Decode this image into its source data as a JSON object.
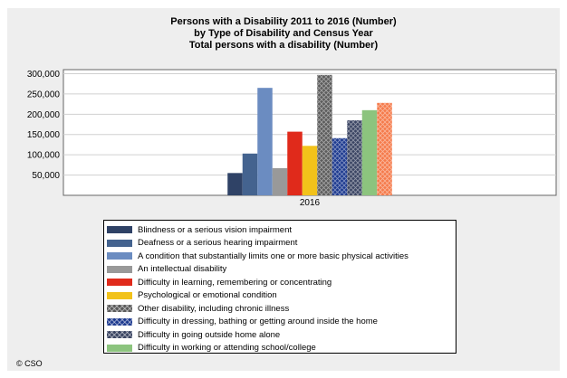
{
  "chart_data": {
    "type": "bar",
    "title": [
      "Persons with a Disability 2011 to 2016 (Number)",
      "by Type of Disability and Census Year",
      "Total persons with a disability (Number)"
    ],
    "categories": [
      "2016"
    ],
    "ylim": [
      0,
      310000
    ],
    "yticks": [
      "50,000",
      "100,000",
      "150,000",
      "200,000",
      "250,000",
      "300,000"
    ],
    "ytick_values": [
      50000,
      100000,
      150000,
      200000,
      250000,
      300000
    ],
    "grid": true,
    "legend_position": "bottom",
    "series": [
      {
        "name": "Blindness or a serious vision impairment",
        "values": [
          55000
        ],
        "color": "#2f4266",
        "pattern": "solid"
      },
      {
        "name": "Deafness or a serious hearing impairment",
        "values": [
          103000
        ],
        "color": "#44638f",
        "pattern": "solid"
      },
      {
        "name": "A condition that substantially limits one or more basic physical activities",
        "values": [
          265000
        ],
        "color": "#6b8cc1",
        "pattern": "solid"
      },
      {
        "name": "An intellectual disability",
        "values": [
          67000
        ],
        "color": "#999999",
        "pattern": "solid"
      },
      {
        "name": "Difficulty in learning, remembering or concentrating",
        "values": [
          157000
        ],
        "color": "#e02a1b",
        "pattern": "solid"
      },
      {
        "name": "Psychological or emotional condition",
        "values": [
          122000
        ],
        "color": "#f2c21a",
        "pattern": "solid"
      },
      {
        "name": "Other disability, including chronic illness",
        "values": [
          297000
        ],
        "color": "#5b5b5b",
        "pattern": "crosshatch"
      },
      {
        "name": "Difficulty in dressing, bathing or getting around inside the home",
        "values": [
          141000
        ],
        "color": "#1d3a8f",
        "pattern": "crosshatch"
      },
      {
        "name": "Difficulty in going outside home alone",
        "values": [
          185000
        ],
        "color": "#3b4563",
        "pattern": "crosshatch"
      },
      {
        "name": "Difficulty in working or attending school/college",
        "values": [
          210000
        ],
        "color": "#8cc47e",
        "pattern": "solid"
      },
      {
        "name": "",
        "values": [
          228000
        ],
        "color": "#f57a4a",
        "pattern": "crosshatch"
      }
    ]
  },
  "footer": {
    "copyright": "© CSO"
  }
}
